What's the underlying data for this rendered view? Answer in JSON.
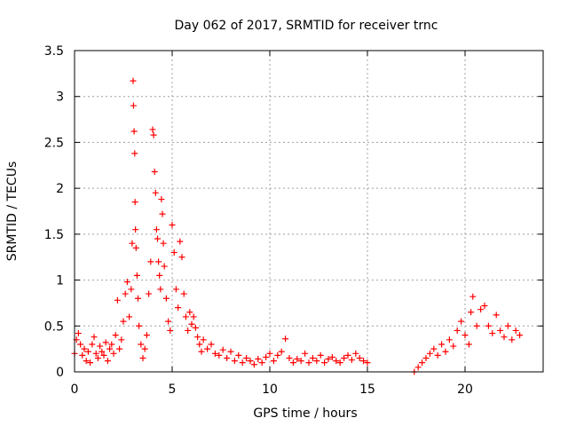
{
  "chart_data": {
    "type": "scatter",
    "title": "Day 062 of 2017, SRMTID for receiver trnc",
    "xlabel": "GPS time / hours",
    "ylabel": "SRMTID / TECUs",
    "xlim": [
      0,
      24
    ],
    "ylim": [
      0,
      3.5
    ],
    "x_ticks": [
      0,
      5,
      10,
      15,
      20
    ],
    "x_tick_labels": [
      "0",
      "5",
      "10",
      "15",
      "20"
    ],
    "y_ticks": [
      0,
      0.5,
      1,
      1.5,
      2,
      2.5,
      3,
      3.5
    ],
    "y_tick_labels": [
      "0",
      "0.5",
      "1",
      "1.5",
      "2",
      "2.5",
      "3",
      "3.5"
    ],
    "grid": true,
    "marker": "+",
    "series": [
      {
        "name": "SRMTID",
        "color": "#ff0000",
        "x": [
          0.0,
          0.1,
          0.2,
          0.3,
          0.4,
          0.5,
          0.6,
          0.7,
          0.8,
          0.9,
          1.0,
          1.1,
          1.2,
          1.3,
          1.4,
          1.5,
          1.6,
          1.7,
          1.8,
          1.9,
          2.0,
          2.1,
          2.2,
          2.3,
          2.4,
          2.5,
          2.6,
          2.7,
          2.8,
          2.9,
          2.95,
          3.0,
          3.02,
          3.05,
          3.08,
          3.1,
          3.12,
          3.15,
          3.2,
          3.25,
          3.3,
          3.4,
          3.5,
          3.6,
          3.7,
          3.8,
          3.9,
          4.0,
          4.05,
          4.1,
          4.15,
          4.2,
          4.25,
          4.3,
          4.35,
          4.4,
          4.45,
          4.5,
          4.55,
          4.6,
          4.7,
          4.8,
          4.9,
          5.0,
          5.1,
          5.2,
          5.3,
          5.4,
          5.5,
          5.6,
          5.7,
          5.8,
          5.9,
          6.0,
          6.1,
          6.2,
          6.3,
          6.4,
          6.5,
          6.6,
          6.8,
          7.0,
          7.2,
          7.4,
          7.6,
          7.8,
          8.0,
          8.2,
          8.4,
          8.6,
          8.8,
          9.0,
          9.2,
          9.4,
          9.6,
          9.8,
          10.0,
          10.2,
          10.4,
          10.6,
          10.8,
          11.0,
          11.2,
          11.4,
          11.6,
          11.8,
          12.0,
          12.2,
          12.4,
          12.6,
          12.8,
          13.0,
          13.2,
          13.4,
          13.6,
          13.8,
          14.0,
          14.2,
          14.4,
          14.6,
          14.8,
          15.0,
          17.4,
          17.6,
          17.8,
          18.0,
          18.2,
          18.4,
          18.6,
          18.8,
          19.0,
          19.2,
          19.4,
          19.6,
          19.8,
          20.0,
          20.2,
          20.3,
          20.4,
          20.6,
          20.8,
          21.0,
          21.2,
          21.4,
          21.6,
          21.8,
          22.0,
          22.2,
          22.4,
          22.6,
          22.8
        ],
        "y": [
          0.2,
          0.35,
          0.42,
          0.3,
          0.18,
          0.25,
          0.12,
          0.22,
          0.1,
          0.3,
          0.38,
          0.2,
          0.15,
          0.28,
          0.22,
          0.18,
          0.32,
          0.12,
          0.25,
          0.3,
          0.2,
          0.4,
          0.78,
          0.25,
          0.35,
          0.55,
          0.85,
          0.98,
          0.6,
          0.9,
          1.4,
          3.17,
          2.9,
          2.62,
          2.38,
          1.85,
          1.55,
          1.35,
          1.05,
          0.8,
          0.5,
          0.3,
          0.15,
          0.25,
          0.4,
          0.85,
          1.2,
          2.64,
          2.58,
          2.18,
          1.95,
          1.55,
          1.45,
          1.2,
          1.05,
          0.9,
          1.88,
          1.72,
          1.4,
          1.15,
          0.8,
          0.55,
          0.45,
          1.6,
          1.3,
          0.9,
          0.7,
          1.42,
          1.25,
          0.85,
          0.6,
          0.45,
          0.65,
          0.52,
          0.6,
          0.48,
          0.38,
          0.3,
          0.22,
          0.35,
          0.25,
          0.3,
          0.2,
          0.18,
          0.24,
          0.15,
          0.22,
          0.12,
          0.18,
          0.1,
          0.15,
          0.12,
          0.08,
          0.14,
          0.1,
          0.16,
          0.2,
          0.12,
          0.18,
          0.22,
          0.36,
          0.15,
          0.1,
          0.14,
          0.12,
          0.2,
          0.1,
          0.15,
          0.12,
          0.18,
          0.1,
          0.14,
          0.16,
          0.12,
          0.1,
          0.15,
          0.18,
          0.13,
          0.2,
          0.15,
          0.12,
          0.1,
          0.0,
          0.05,
          0.1,
          0.15,
          0.2,
          0.25,
          0.18,
          0.3,
          0.22,
          0.35,
          0.28,
          0.45,
          0.55,
          0.4,
          0.3,
          0.65,
          0.82,
          0.5,
          0.68,
          0.72,
          0.5,
          0.42,
          0.62,
          0.45,
          0.38,
          0.5,
          0.35,
          0.45,
          0.4
        ]
      }
    ]
  }
}
